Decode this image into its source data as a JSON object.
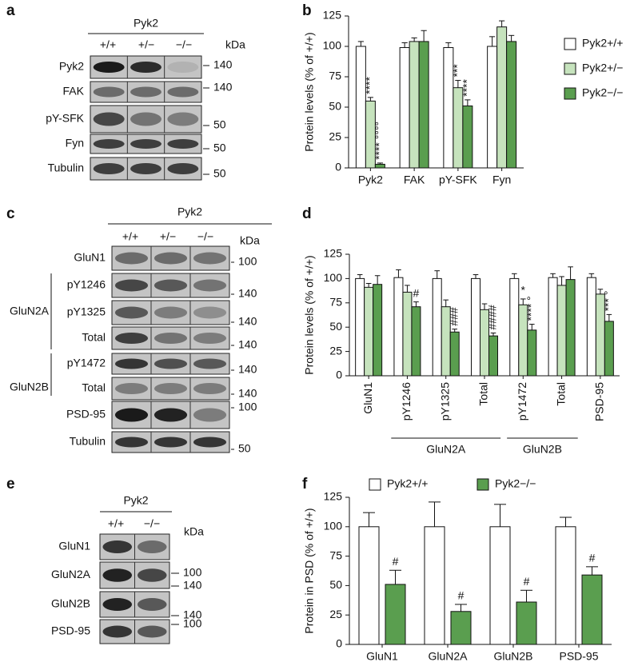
{
  "blots": [
    {
      "panel": "a",
      "group": "Pyk2",
      "lanes": [
        "+/+",
        "+/−",
        "−/−"
      ],
      "unit": "kDa",
      "rows": [
        {
          "name": "Pyk2",
          "marker": "140"
        },
        {
          "name": "FAK",
          "marker": "140"
        },
        {
          "name": "pY-SFK",
          "marker": "50"
        },
        {
          "name": "Fyn",
          "marker": "50"
        },
        {
          "name": "Tubulin",
          "marker": "50"
        }
      ]
    },
    {
      "panel": "c",
      "group": "Pyk2",
      "lanes": [
        "+/+",
        "+/−",
        "−/−"
      ],
      "unit": "kDa",
      "rows": [
        {
          "name": "GluN1",
          "marker": "100"
        },
        {
          "name": "pY1246",
          "marker": "140"
        },
        {
          "name": "pY1325",
          "marker": "140"
        },
        {
          "name": "Total",
          "marker": "140"
        },
        {
          "name": "pY1472",
          "marker": "140"
        },
        {
          "name": "Total",
          "marker": "140"
        },
        {
          "name": "PSD-95",
          "marker": "100"
        },
        {
          "name": "Tubulin",
          "marker": "50"
        }
      ],
      "sections": [
        "GluN2A",
        "GluN2B"
      ]
    },
    {
      "panel": "e",
      "group": "Pyk2",
      "lanes": [
        "+/+",
        "−/−"
      ],
      "unit": "kDa",
      "rows": [
        {
          "name": "GluN1",
          "marker": "100"
        },
        {
          "name": "GluN2A",
          "marker": "140"
        },
        {
          "name": "GluN2B",
          "marker": "140"
        },
        {
          "name": "PSD-95",
          "marker": "100"
        }
      ]
    }
  ],
  "chart_data": [
    {
      "type": "bar",
      "panel": "b",
      "y_label": "Protein levels (% of +/+)",
      "categories": [
        "Pyk2",
        "FAK",
        "pY-SFK",
        "Fyn"
      ],
      "series": [
        {
          "name": "Pyk2+/+",
          "color": "#ffffff",
          "values": [
            100,
            99,
            99,
            100
          ],
          "errors": [
            4,
            4,
            4,
            8
          ],
          "annotations": [
            null,
            null,
            null,
            null
          ]
        },
        {
          "name": "Pyk2+/−",
          "color": "#c6e3bd",
          "values": [
            55,
            104,
            66,
            116
          ],
          "errors": [
            3,
            3,
            6,
            5
          ],
          "annotations": [
            "****",
            null,
            "***",
            null
          ]
        },
        {
          "name": "Pyk2−/−",
          "color": "#5a9e4f",
          "values": [
            3,
            104,
            51,
            104
          ],
          "errors": [
            1,
            9,
            5,
            5
          ],
          "annotations": [
            "****  °°°°",
            null,
            "****",
            null
          ]
        }
      ],
      "ylim": [
        0,
        125
      ],
      "yticks": [
        0,
        25,
        50,
        75,
        100,
        125
      ],
      "legend": "right"
    },
    {
      "type": "bar",
      "panel": "d",
      "y_label": "Protein levels (% of +/+)",
      "categories": [
        "GluN1",
        "pY1246",
        "pY1325",
        "Total",
        "pY1472",
        "Total",
        "PSD-95"
      ],
      "groups": [
        "GluN2A",
        "GluN2B"
      ],
      "series": [
        {
          "color": "#ffffff",
          "values": [
            100,
            101,
            100,
            100,
            100,
            101,
            101
          ],
          "errors": [
            4,
            8,
            8,
            4,
            5,
            4,
            4
          ],
          "annotations": [
            null,
            null,
            null,
            null,
            null,
            null,
            null
          ]
        },
        {
          "color": "#c6e3bd",
          "values": [
            91,
            86,
            71,
            68,
            73,
            93,
            84
          ],
          "errors": [
            4,
            7,
            7,
            6,
            6,
            9,
            5
          ],
          "annotations": [
            null,
            null,
            null,
            null,
            "*",
            null,
            null
          ]
        },
        {
          "color": "#5a9e4f",
          "values": [
            94,
            71,
            45,
            41,
            47,
            99,
            56
          ],
          "errors": [
            9,
            5,
            3,
            3,
            6,
            13,
            7
          ],
          "annotations": [
            null,
            "#",
            "###",
            "####",
            "****  °",
            null,
            "***  °"
          ]
        }
      ],
      "ylim": [
        0,
        125
      ],
      "yticks": [
        0,
        25,
        50,
        75,
        100,
        125
      ]
    },
    {
      "type": "bar",
      "panel": "f",
      "y_label": "Protein in PSD (% of +/+)",
      "categories": [
        "GluN1",
        "GluN2A",
        "GluN2B",
        "PSD-95"
      ],
      "series": [
        {
          "name": "Pyk2+/+",
          "color": "#ffffff",
          "values": [
            100,
            100,
            100,
            100
          ],
          "errors": [
            12,
            21,
            19,
            8
          ],
          "annotations": [
            null,
            null,
            null,
            null
          ]
        },
        {
          "name": "Pyk2−/−",
          "color": "#5a9e4f",
          "values": [
            51,
            28,
            36,
            59
          ],
          "errors": [
            12,
            6,
            10,
            7
          ],
          "annotations": [
            "#",
            "#",
            "#",
            "#"
          ]
        }
      ],
      "ylim": [
        0,
        125
      ],
      "yticks": [
        0,
        25,
        50,
        75,
        100,
        125
      ],
      "legend": "top"
    }
  ]
}
